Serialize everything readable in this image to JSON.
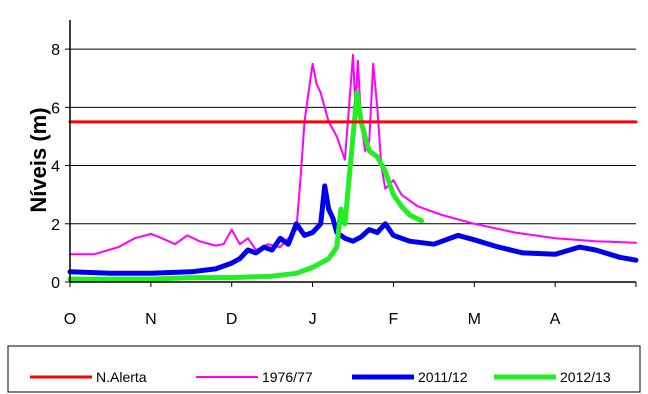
{
  "chart_data": {
    "type": "line",
    "title": "",
    "xlabel": "",
    "ylabel": "Níveis (m)",
    "ylim": [
      0,
      9
    ],
    "xlim": [
      0,
      7
    ],
    "yticks": [
      0,
      2,
      4,
      6,
      8
    ],
    "x_tick_labels": [
      "O",
      "N",
      "D",
      "J",
      "F",
      "M",
      "A"
    ],
    "grid": "horizontal",
    "legend_position": "bottom",
    "series": [
      {
        "name": "N.Alerta",
        "color": "#ff0000",
        "stroke": 3,
        "x": [
          0,
          7
        ],
        "y": [
          5.5,
          5.5
        ]
      },
      {
        "name": "1976/77",
        "color": "#ff00ff",
        "stroke": 2,
        "x": [
          0,
          0.3,
          0.6,
          0.8,
          1.0,
          1.1,
          1.3,
          1.45,
          1.6,
          1.8,
          1.9,
          2.0,
          2.1,
          2.2,
          2.3,
          2.45,
          2.6,
          2.7,
          2.8,
          2.85,
          2.9,
          2.95,
          3.0,
          3.05,
          3.1,
          3.2,
          3.3,
          3.4,
          3.45,
          3.5,
          3.53,
          3.56,
          3.6,
          3.65,
          3.7,
          3.75,
          3.8,
          3.85,
          3.9,
          4.0,
          4.1,
          4.3,
          4.6,
          5.0,
          5.5,
          6.0,
          6.5,
          7.0
        ],
        "y": [
          0.95,
          0.95,
          1.2,
          1.5,
          1.65,
          1.55,
          1.3,
          1.6,
          1.4,
          1.25,
          1.3,
          1.8,
          1.3,
          1.5,
          1.1,
          1.3,
          1.2,
          1.5,
          1.8,
          3.5,
          5.5,
          6.5,
          7.5,
          6.8,
          6.5,
          5.5,
          5.0,
          4.2,
          6.0,
          7.8,
          6.0,
          7.6,
          5.5,
          4.5,
          4.8,
          7.5,
          6.0,
          4.0,
          3.2,
          3.5,
          3.0,
          2.6,
          2.3,
          2.0,
          1.7,
          1.5,
          1.4,
          1.35
        ]
      },
      {
        "name": "2011/12",
        "color": "#0000ee",
        "stroke": 5,
        "x": [
          0,
          0.5,
          1.0,
          1.5,
          1.8,
          2.0,
          2.1,
          2.2,
          2.3,
          2.4,
          2.5,
          2.6,
          2.7,
          2.8,
          2.9,
          3.0,
          3.1,
          3.15,
          3.2,
          3.25,
          3.3,
          3.4,
          3.5,
          3.6,
          3.7,
          3.8,
          3.9,
          4.0,
          4.2,
          4.5,
          4.8,
          5.0,
          5.3,
          5.6,
          6.0,
          6.3,
          6.5,
          6.8,
          7.0
        ],
        "y": [
          0.35,
          0.3,
          0.3,
          0.35,
          0.45,
          0.65,
          0.8,
          1.1,
          1.0,
          1.2,
          1.1,
          1.5,
          1.3,
          2.0,
          1.6,
          1.7,
          2.0,
          3.3,
          2.5,
          2.2,
          1.7,
          1.5,
          1.4,
          1.55,
          1.8,
          1.7,
          2.0,
          1.6,
          1.4,
          1.3,
          1.6,
          1.45,
          1.2,
          1.0,
          0.95,
          1.2,
          1.1,
          0.85,
          0.75
        ]
      },
      {
        "name": "2012/13",
        "color": "#22ee22",
        "stroke": 5,
        "x": [
          0,
          0.5,
          1.0,
          1.5,
          2.0,
          2.5,
          2.8,
          3.0,
          3.2,
          3.3,
          3.35,
          3.4,
          3.45,
          3.5,
          3.55,
          3.6,
          3.65,
          3.7,
          3.8,
          3.9,
          4.0,
          4.1,
          4.2,
          4.35
        ],
        "y": [
          0.1,
          0.1,
          0.1,
          0.15,
          0.15,
          0.2,
          0.3,
          0.5,
          0.8,
          1.2,
          2.5,
          2.0,
          3.5,
          5.0,
          6.5,
          5.5,
          5.0,
          4.5,
          4.3,
          3.8,
          3.0,
          2.6,
          2.3,
          2.1
        ]
      }
    ]
  }
}
